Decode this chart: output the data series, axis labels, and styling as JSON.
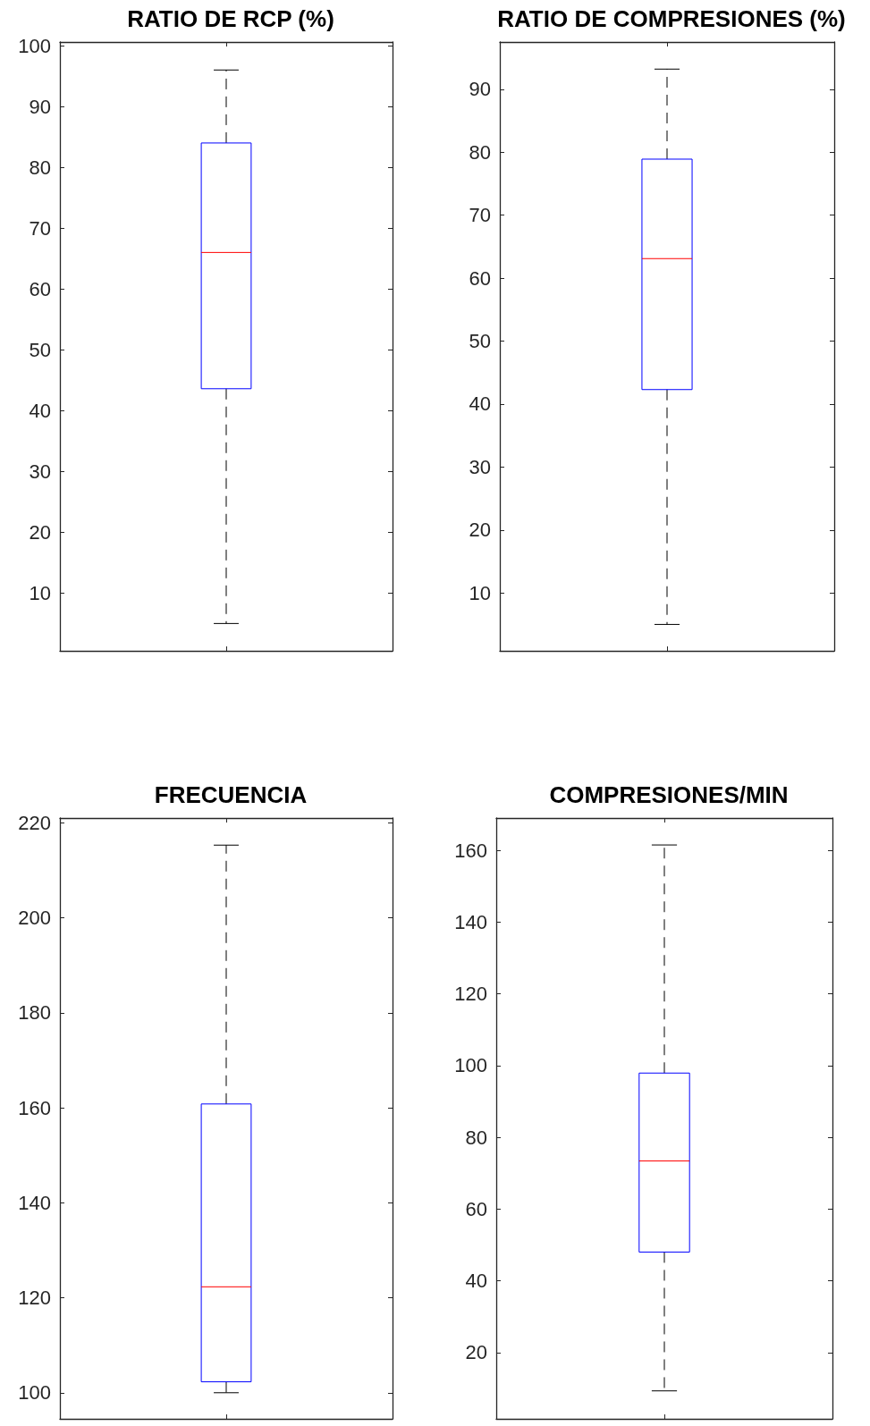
{
  "chart_data": [
    {
      "type": "box",
      "title": "RATIO DE RCP (%)",
      "categories": [
        null
      ],
      "ylim": [
        0.5,
        100.6
      ],
      "yticks": [
        10,
        20,
        30,
        40,
        50,
        60,
        70,
        80,
        90,
        100
      ],
      "series": [
        {
          "color": "#0000ff",
          "boxes": [
            {
              "low": 5,
              "q1": 43.6,
              "median": 66,
              "q3": 84,
              "high": 96
            }
          ]
        }
      ]
    },
    {
      "type": "box",
      "title": "RATIO DE COMPRESIONES (%)",
      "categories": [
        null
      ],
      "ylim": [
        0.8,
        97.5
      ],
      "yticks": [
        10,
        20,
        30,
        40,
        50,
        60,
        70,
        80,
        90
      ],
      "series": [
        {
          "color": "#0000ff",
          "boxes": [
            {
              "low": 5,
              "q1": 42.3,
              "median": 63.1,
              "q3": 78.9,
              "high": 93.2
            }
          ]
        }
      ]
    },
    {
      "type": "box",
      "title": "FRECUENCIA",
      "categories": [
        null
      ],
      "ylim": [
        94.5,
        221
      ],
      "yticks": [
        100,
        120,
        140,
        160,
        180,
        200,
        220
      ],
      "series": [
        {
          "color": "#0000ff",
          "boxes": [
            {
              "low": 100,
              "q1": 102.3,
              "median": 122.3,
              "q3": 160.8,
              "high": 215.3
            }
          ]
        }
      ]
    },
    {
      "type": "box",
      "title": "COMPRESIONES/MIN",
      "categories": [
        null
      ],
      "ylim": [
        1.5,
        169
      ],
      "yticks": [
        20,
        40,
        60,
        80,
        100,
        120,
        140,
        160
      ],
      "series": [
        {
          "color": "#0000ff",
          "boxes": [
            {
              "low": 9.3,
              "q1": 48,
              "median": 73.4,
              "q3": 97.9,
              "high": 161.5
            }
          ]
        }
      ]
    }
  ]
}
